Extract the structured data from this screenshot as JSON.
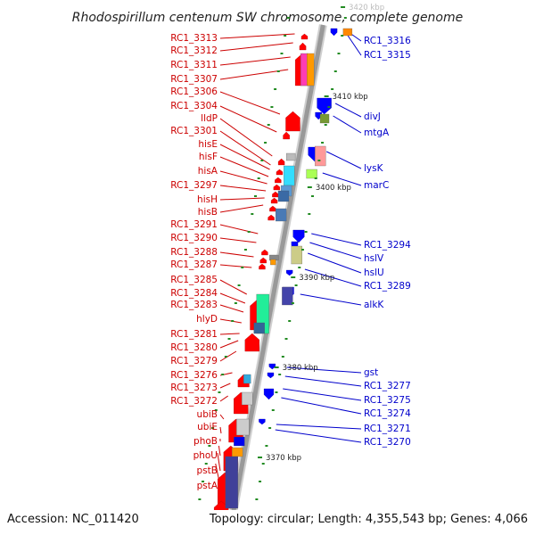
{
  "title": "Rhodospirillum centenum SW chromosome, complete genome",
  "footer_left": "Accession: NC_011420",
  "footer_right": "Topology: circular; Length: 4,355,543 bp; Genes: 4,066",
  "scale_labels": [
    {
      "text": "3420 kbp",
      "faint": true
    },
    {
      "text": "3410 kbp",
      "faint": false
    },
    {
      "text": "3400 kbp",
      "faint": false
    },
    {
      "text": "3390 kbp",
      "faint": false
    },
    {
      "text": "3380 kbp",
      "faint": false
    },
    {
      "text": "3370 kbp",
      "faint": false
    }
  ],
  "left_labels": [
    "RC1_3313",
    "RC1_3312",
    "RC1_3311",
    "RC1_3307",
    "RC1_3306",
    "RC1_3304",
    "lldP",
    "RC1_3301",
    "hisE",
    "hisF",
    "hisA",
    "RC1_3297",
    "hisH",
    "hisB",
    "RC1_3291",
    "RC1_3290",
    "RC1_3288",
    "RC1_3287",
    "RC1_3285",
    "RC1_3284",
    "RC1_3283",
    "hlyD",
    "RC1_3281",
    "RC1_3280",
    "RC1_3279",
    "RC1_3276",
    "RC1_3273",
    "RC1_3272",
    "ubiB",
    "ubiE",
    "phoB",
    "phoU",
    "pstB",
    "pstA"
  ],
  "right_labels": [
    "RC1_3316",
    "RC1_3315",
    "divJ",
    "mtgA",
    "lysK",
    "marC",
    "RC1_3294",
    "hslV",
    "hslU",
    "RC1_3289",
    "alkK",
    "gst",
    "RC1_3277",
    "RC1_3275",
    "RC1_3274",
    "RC1_3271",
    "RC1_3270"
  ],
  "colors": {
    "forward": "#ff0000",
    "reverse": "#0000ff",
    "left_label": "#cc0000",
    "right_label": "#0000cc",
    "backbone": "#999999",
    "tick": "#228B22"
  }
}
